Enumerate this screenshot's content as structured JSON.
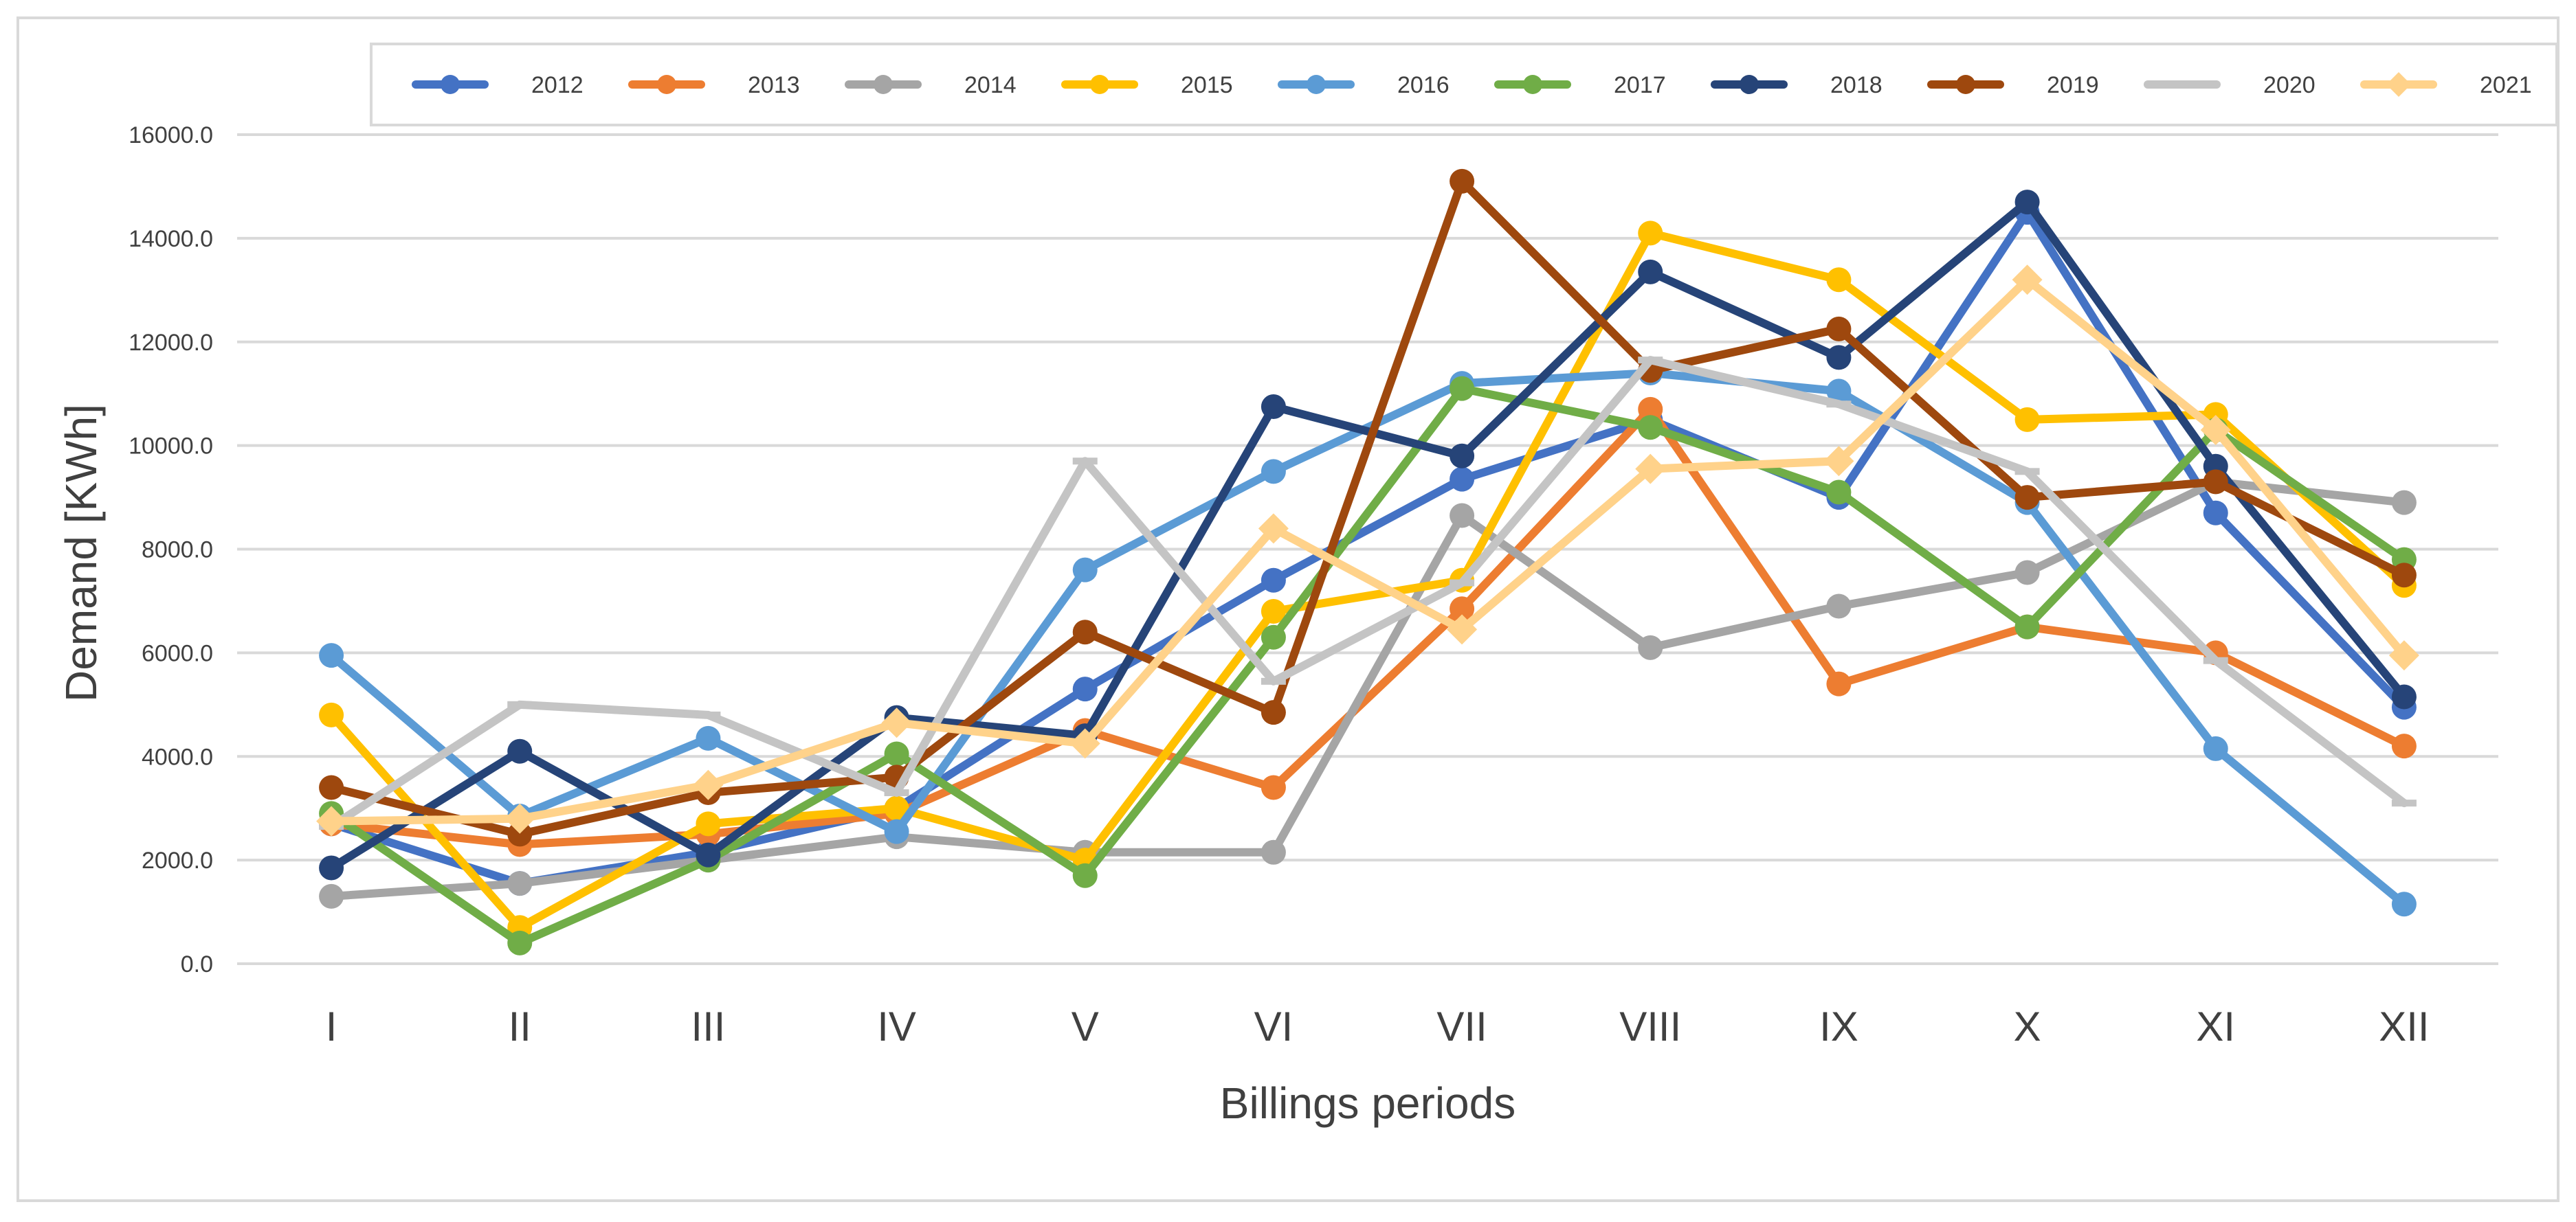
{
  "chart_data": {
    "type": "line",
    "title": "",
    "xlabel": "Billings periods",
    "ylabel": "Demand [KWh]",
    "ylim": [
      0,
      16000
    ],
    "yticks": [
      0,
      2000,
      4000,
      6000,
      8000,
      10000,
      12000,
      14000,
      16000
    ],
    "ytick_labels": [
      "0.0",
      "2000.0",
      "4000.0",
      "6000.0",
      "8000.0",
      "10000.0",
      "12000.0",
      "14000.0",
      "16000.0"
    ],
    "categories": [
      "I",
      "II",
      "III",
      "IV",
      "V",
      "VI",
      "VII",
      "VIII",
      "IX",
      "X",
      "XI",
      "XII"
    ],
    "grid": true,
    "legend_position": "top",
    "series": [
      {
        "name": "2012",
        "color": "#4472C4",
        "marker": "circle",
        "values": [
          2700,
          1550,
          2150,
          3000,
          5300,
          7400,
          9350,
          10500,
          9000,
          14500,
          8700,
          4950
        ]
      },
      {
        "name": "2013",
        "color": "#ED7D31",
        "marker": "circle",
        "values": [
          2700,
          2300,
          2500,
          2900,
          4500,
          3400,
          6850,
          10700,
          5400,
          6500,
          6000,
          4200
        ]
      },
      {
        "name": "2014",
        "color": "#A5A5A5",
        "marker": "circle",
        "values": [
          1300,
          1550,
          2000,
          2450,
          2150,
          2150,
          8650,
          6100,
          6900,
          7550,
          9300,
          8900
        ]
      },
      {
        "name": "2015",
        "color": "#FFC000",
        "marker": "circle",
        "values": [
          4800,
          700,
          2700,
          3000,
          2000,
          6800,
          7400,
          14100,
          13200,
          10500,
          10600,
          7300
        ]
      },
      {
        "name": "2016",
        "color": "#5B9BD5",
        "marker": "circle",
        "values": [
          5950,
          2850,
          4350,
          2550,
          7600,
          9500,
          11200,
          11400,
          11050,
          8900,
          4150,
          1150
        ]
      },
      {
        "name": "2017",
        "color": "#70AD47",
        "marker": "circle",
        "values": [
          2900,
          400,
          2000,
          4050,
          1700,
          6300,
          11100,
          10350,
          9100,
          6500,
          10300,
          7800
        ]
      },
      {
        "name": "2018",
        "color": "#264478",
        "marker": "circle",
        "values": [
          1850,
          4100,
          2100,
          4750,
          4400,
          10750,
          9800,
          13350,
          11700,
          14700,
          9600,
          5150
        ]
      },
      {
        "name": "2019",
        "color": "#9E480E",
        "marker": "circle",
        "values": [
          3400,
          2500,
          3300,
          3600,
          6400,
          4850,
          15100,
          11450,
          12250,
          9000,
          9300,
          7500
        ]
      },
      {
        "name": "2020",
        "color": "#C4C4C4",
        "marker": "dash",
        "values": [
          2650,
          5000,
          4800,
          3300,
          9700,
          5450,
          7350,
          11650,
          10800,
          9500,
          5850,
          3100
        ]
      },
      {
        "name": "2021",
        "color": "#FFD28A",
        "marker": "diamond",
        "values": [
          2750,
          2800,
          3450,
          4650,
          4250,
          8400,
          6450,
          9550,
          9700,
          13200,
          10300,
          5950
        ]
      }
    ]
  }
}
